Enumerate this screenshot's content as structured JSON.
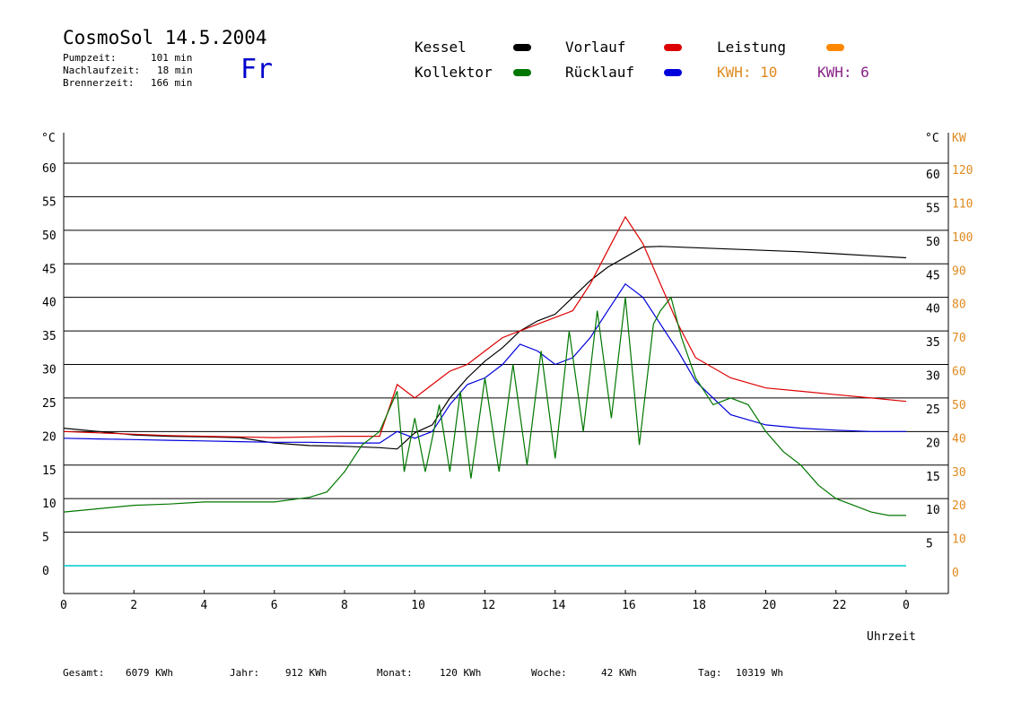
{
  "header": {
    "title": "CosmoSol 14.5.2004",
    "day": "Fr",
    "stats": [
      {
        "label": "Pumpzeit:",
        "value": "101 min"
      },
      {
        "label": "Nachlaufzeit:",
        "value": "18 min"
      },
      {
        "label": "Brennerzeit:",
        "value": "166 min"
      }
    ]
  },
  "legend": {
    "kessel": {
      "label": "Kessel",
      "color": "#000000"
    },
    "vorlauf": {
      "label": "Vorlauf",
      "color": "#dd0000"
    },
    "leistung": {
      "label": "Leistung",
      "color": "#ff8800"
    },
    "kollektor": {
      "label": "Kollektor",
      "color": "#007700"
    },
    "ruecklauf": {
      "label": "Rücklauf",
      "color": "#0000dd"
    },
    "kwh1": {
      "label": "KWH: 10",
      "color": "#e08a1e"
    },
    "kwh2": {
      "label": "KWH: 6",
      "color": "#882288"
    }
  },
  "footer": [
    {
      "label": "Gesamt:",
      "value": "6079 KWh"
    },
    {
      "label": "Jahr:",
      "value": "912 KWh"
    },
    {
      "label": "Monat:",
      "value": "120 KWh"
    },
    {
      "label": "Woche:",
      "value": "42 KWh"
    },
    {
      "label": "Tag:",
      "value": "10319 Wh"
    }
  ],
  "chart_data": {
    "type": "line",
    "xlabel": "Uhrzeit",
    "y_unit_left": "°C",
    "y_unit_right_temp": "°C",
    "y_unit_right_power": "KW",
    "x_range": [
      0,
      24
    ],
    "y_range": [
      0,
      60
    ],
    "x_ticks": [
      "0",
      "2",
      "4",
      "6",
      "8",
      "10",
      "12",
      "14",
      "16",
      "18",
      "20",
      "22",
      "0"
    ],
    "y_ticks_left": [
      "0",
      "5",
      "10",
      "15",
      "20",
      "25",
      "30",
      "35",
      "40",
      "45",
      "50",
      "55",
      "60"
    ],
    "y_ticks_right": [
      "5",
      "10",
      "15",
      "20",
      "25",
      "30",
      "35",
      "40",
      "45",
      "50",
      "55",
      "60"
    ],
    "y_ticks_kw": [
      "0",
      "10",
      "20",
      "30",
      "40",
      "50",
      "60",
      "70",
      "80",
      "90",
      "100",
      "110",
      "120"
    ],
    "grid": true,
    "series": [
      {
        "name": "Kessel",
        "color": "#000000",
        "x": [
          0,
          1,
          2,
          3,
          4,
          5,
          6,
          7,
          8,
          9,
          9.5,
          10,
          10.5,
          11,
          11.5,
          12,
          12.5,
          13,
          13.5,
          14,
          14.5,
          15,
          15.5,
          16,
          16.5,
          17,
          18,
          19,
          20,
          21,
          22,
          23,
          24
        ],
        "y": [
          20.5,
          20,
          19.5,
          19.3,
          19.2,
          19.1,
          18.3,
          17.9,
          17.8,
          17.6,
          17.4,
          19.8,
          21,
          25,
          28,
          30.5,
          32.5,
          35,
          36.5,
          37.5,
          40,
          42.5,
          44.5,
          46,
          47.5,
          47.6,
          47.4,
          47.2,
          47,
          46.8,
          46.5,
          46.2,
          45.9
        ]
      },
      {
        "name": "Vorlauf",
        "color": "#dd0000",
        "x": [
          0,
          1,
          2,
          3,
          4,
          5,
          6,
          7,
          8,
          9,
          9.5,
          10,
          10.5,
          11,
          11.5,
          12,
          12.5,
          13,
          13.5,
          14,
          14.5,
          15,
          15.5,
          16,
          16.5,
          17,
          17.5,
          18,
          19,
          20,
          21,
          22,
          23,
          24
        ],
        "y": [
          20,
          19.8,
          19.6,
          19.4,
          19.3,
          19.2,
          19.1,
          19.2,
          19.3,
          19.3,
          27,
          25,
          27,
          29,
          30,
          32,
          34,
          35,
          36,
          37,
          38,
          42,
          47,
          52,
          48,
          42,
          36,
          31,
          28,
          26.5,
          26,
          25.5,
          25,
          24.5
        ]
      },
      {
        "name": "Rücklauf",
        "color": "#0000dd",
        "x": [
          0,
          1,
          2,
          3,
          4,
          5,
          6,
          7,
          8,
          9,
          9.5,
          10,
          10.5,
          11,
          11.5,
          12,
          12.5,
          13,
          13.5,
          14,
          14.5,
          15,
          15.5,
          16,
          16.5,
          17,
          17.5,
          18,
          18.5,
          19,
          20,
          21,
          22,
          23,
          24
        ],
        "y": [
          19,
          18.9,
          18.8,
          18.7,
          18.6,
          18.5,
          18.4,
          18.4,
          18.3,
          18.3,
          20,
          19,
          20,
          24,
          27,
          28,
          30,
          33,
          32,
          30,
          31,
          34,
          38,
          42,
          40,
          36,
          32,
          27.5,
          25,
          22.5,
          21,
          20.5,
          20.2,
          20,
          20
        ]
      },
      {
        "name": "Kollektor",
        "color": "#007700",
        "x": [
          0,
          1,
          2,
          3,
          4,
          5,
          6,
          7,
          7.5,
          8,
          8.5,
          9,
          9.5,
          9.7,
          10,
          10.3,
          10.7,
          11,
          11.3,
          11.6,
          12,
          12.4,
          12.8,
          13.2,
          13.6,
          14,
          14.4,
          14.8,
          15.2,
          15.6,
          16,
          16.4,
          16.8,
          17,
          17.3,
          17.6,
          18,
          18.5,
          19,
          19.5,
          20,
          20.5,
          21,
          21.5,
          22,
          22.5,
          23,
          23.5,
          24
        ],
        "y": [
          8,
          8.5,
          9,
          9.2,
          9.5,
          9.5,
          9.5,
          10.2,
          11,
          14,
          18,
          20,
          26,
          14,
          22,
          14,
          24,
          14,
          26,
          13,
          28,
          14,
          30,
          15,
          32,
          16,
          35,
          20,
          38,
          22,
          40,
          18,
          36,
          38,
          40,
          34,
          28,
          24,
          25,
          24,
          20,
          17,
          15,
          12,
          10,
          9,
          8,
          7.5,
          7.5
        ]
      }
    ]
  }
}
